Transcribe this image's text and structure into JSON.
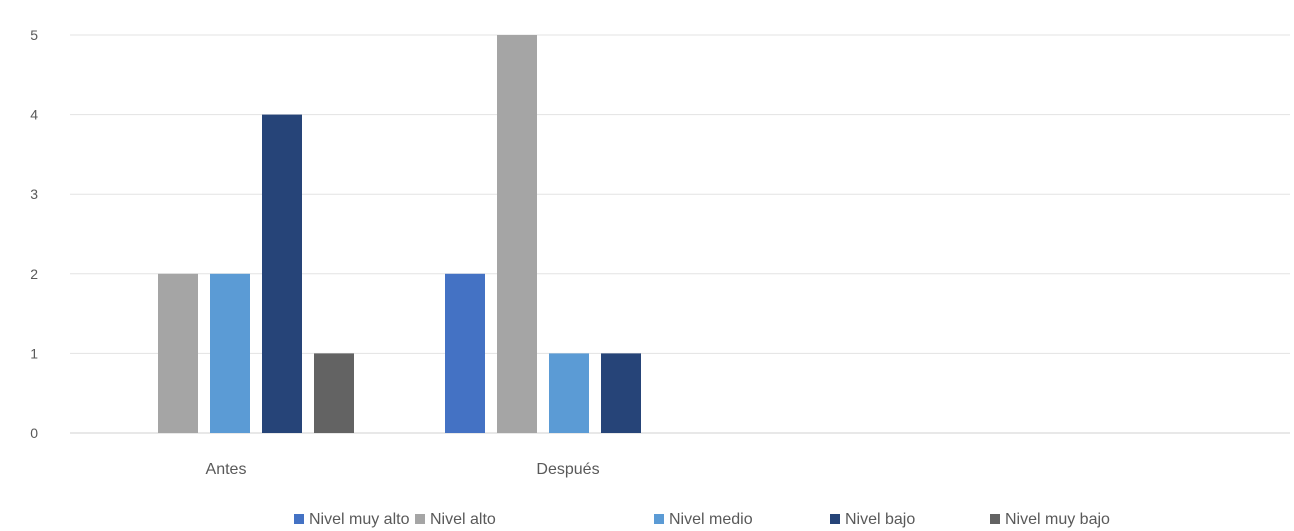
{
  "chart_data": {
    "type": "bar",
    "title": "",
    "xlabel": "",
    "ylabel": "",
    "categories": [
      "Antes",
      "Después"
    ],
    "ylim": [
      0,
      5
    ],
    "yticks": [
      0,
      1,
      2,
      3,
      4,
      5
    ],
    "grid": true,
    "legend_position": "bottom",
    "series": [
      {
        "name": "Nivel muy alto",
        "color": "#4472C4",
        "values": [
          0,
          2
        ]
      },
      {
        "name": "Nivel alto",
        "color": "#A5A5A5",
        "values": [
          2,
          5
        ]
      },
      {
        "name": "Nivel medio",
        "color": "#5B9BD5",
        "values": [
          2,
          1
        ]
      },
      {
        "name": "Nivel bajo",
        "color": "#264478",
        "values": [
          4,
          1
        ]
      },
      {
        "name": "Nivel muy bajo",
        "color": "#636363",
        "values": [
          1,
          0
        ]
      }
    ]
  }
}
